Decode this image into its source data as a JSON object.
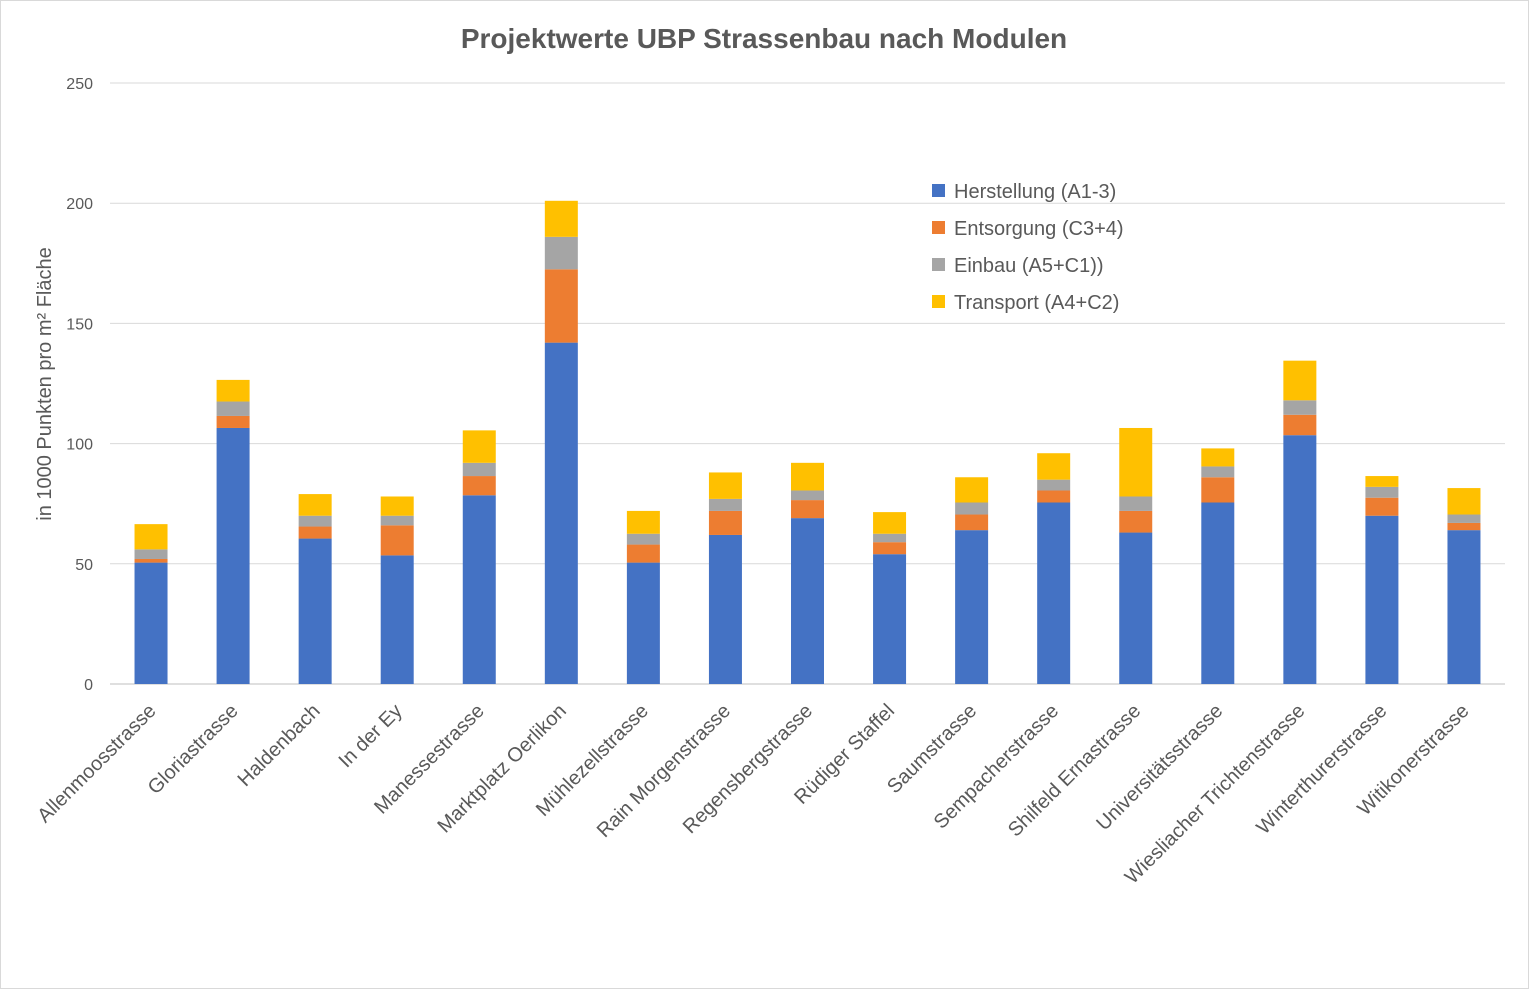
{
  "chart_data": {
    "type": "bar",
    "stacked": true,
    "title": "Projektwerte UBP Strassenbau nach Modulen",
    "xlabel": "",
    "ylabel": "in 1000 Punkten pro m² Fläche",
    "ylim": [
      0,
      250
    ],
    "yticks": [
      "0",
      "50",
      "100",
      "150",
      "200",
      "250"
    ],
    "grid": true,
    "legend_position": "top-right",
    "categories": [
      "Allenmoosstrasse",
      "Gloriastrasse",
      "Haldenbach",
      "In der Ey",
      "Manessestrasse",
      "Marktplatz Oerlikon",
      "Mühlezellstrasse",
      "Rain Morgenstrasse",
      "Regensbergstrasse",
      "Rüdiger Staffel",
      "Saumstrasse",
      "Sempacherstrasse",
      "Shilfeld Ernastrasse",
      "Universitätsstrasse",
      "Wiesliacher Trichtenstrasse",
      "Winterthurerstrasse",
      "Witikonerstrasse"
    ],
    "series": [
      {
        "name": "Herstellung (A1-3)",
        "color": "#4472c4",
        "values": [
          50.5,
          106.5,
          60.5,
          53.5,
          78.5,
          142,
          50.5,
          62,
          69,
          54,
          64,
          75.5,
          63,
          75.5,
          103.5,
          70,
          64
        ]
      },
      {
        "name": "Entsorgung (C3+4)",
        "color": "#ed7d31",
        "values": [
          1.5,
          5,
          5,
          12.5,
          8,
          30.5,
          7.5,
          10,
          7.5,
          5,
          6.5,
          5,
          9,
          10.5,
          8.5,
          7.5,
          3
        ]
      },
      {
        "name": "Einbau (A5+C1))",
        "color": "#a5a5a5",
        "values": [
          4,
          6,
          4.5,
          4,
          5.5,
          13.5,
          4.5,
          5,
          4,
          3.5,
          5,
          4.5,
          6,
          4.5,
          6,
          4.5,
          3.5
        ]
      },
      {
        "name": "Transport (A4+C2)",
        "color": "#ffc000",
        "values": [
          10.5,
          9,
          9,
          8,
          13.5,
          15,
          9.5,
          11,
          11.5,
          9,
          10.5,
          11,
          28.5,
          7.5,
          16.5,
          4.5,
          11
        ]
      }
    ]
  }
}
